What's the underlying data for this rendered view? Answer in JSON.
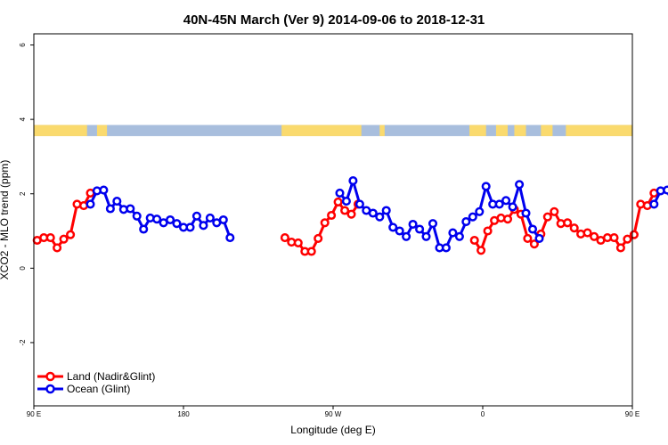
{
  "chart_data": {
    "type": "line",
    "title": "40N-45N March (Ver 9)   2014-09-06 to 2018-12-31",
    "xlabel": "Longitude (deg E)",
    "ylabel": "XCO2 - MLO trend (ppm)",
    "xlim": [
      90,
      450
    ],
    "ylim": [
      -3.7,
      6.3
    ],
    "x_ticks": [
      {
        "value": 90,
        "label": "90 E"
      },
      {
        "value": 180,
        "label": "180"
      },
      {
        "value": 270,
        "label": "90 W"
      },
      {
        "value": 360,
        "label": "0"
      },
      {
        "value": 450,
        "label": "90 E"
      },
      {
        "value": 540,
        "label": "180"
      }
    ],
    "y_ticks": [
      {
        "value": -2,
        "label": "-2"
      },
      {
        "value": 0,
        "label": "0"
      },
      {
        "value": 2,
        "label": "2"
      },
      {
        "value": 4,
        "label": "4"
      },
      {
        "value": 6,
        "label": "6"
      }
    ],
    "legend_position": "bottom-left",
    "land_ocean_band": {
      "y_range": [
        3.55,
        3.85
      ],
      "land_color": "#FADA6E",
      "ocean_color": "#A8BEDD",
      "land_segments": [
        [
          90,
          122
        ],
        [
          128,
          134
        ],
        [
          239,
          287
        ],
        [
          298,
          301
        ],
        [
          352,
          362
        ],
        [
          368,
          375
        ],
        [
          379,
          386
        ],
        [
          395,
          402
        ],
        [
          410,
          451
        ],
        [
          462,
          465
        ],
        [
          470,
          473
        ],
        [
          481,
          486
        ],
        [
          490,
          495
        ],
        [
          498,
          504
        ],
        [
          509,
          512
        ]
      ]
    },
    "series": [
      {
        "name": "Land (Nadir&Glint)",
        "color": "#FF0000",
        "points": [
          [
            92,
            0.75
          ],
          [
            96,
            0.82
          ],
          [
            100,
            0.82
          ],
          [
            104,
            0.55
          ],
          [
            108,
            0.78
          ],
          [
            112,
            0.9
          ],
          [
            116,
            1.72
          ],
          [
            120,
            1.68
          ],
          [
            124,
            2.02
          ],
          [
            241,
            0.82
          ],
          [
            245,
            0.7
          ],
          [
            249,
            0.68
          ],
          [
            253,
            0.45
          ],
          [
            257,
            0.45
          ],
          [
            261,
            0.8
          ],
          [
            265,
            1.22
          ],
          [
            269,
            1.42
          ],
          [
            273,
            1.78
          ],
          [
            277,
            1.55
          ],
          [
            281,
            1.45
          ],
          [
            285,
            1.72
          ],
          [
            355,
            0.75
          ],
          [
            359,
            0.48
          ],
          [
            363,
            1.0
          ],
          [
            367,
            1.28
          ],
          [
            371,
            1.35
          ],
          [
            375,
            1.32
          ],
          [
            379,
            1.58
          ],
          [
            383,
            1.45
          ],
          [
            387,
            0.8
          ],
          [
            391,
            0.65
          ],
          [
            395,
            0.92
          ],
          [
            399,
            1.38
          ],
          [
            403,
            1.52
          ],
          [
            407,
            1.2
          ],
          [
            411,
            1.22
          ],
          [
            415,
            1.08
          ],
          [
            419,
            0.92
          ],
          [
            423,
            0.95
          ],
          [
            427,
            0.85
          ],
          [
            431,
            0.75
          ],
          [
            435,
            0.82
          ],
          [
            439,
            0.82
          ],
          [
            443,
            0.55
          ],
          [
            447,
            0.78
          ],
          [
            451,
            0.9
          ],
          [
            455,
            1.72
          ],
          [
            459,
            1.68
          ],
          [
            463,
            2.02
          ]
        ]
      },
      {
        "name": "Ocean (Glint)",
        "color": "#0000EE",
        "points": [
          [
            124,
            1.72
          ],
          [
            128,
            2.08
          ],
          [
            132,
            2.1
          ],
          [
            136,
            1.6
          ],
          [
            140,
            1.8
          ],
          [
            144,
            1.58
          ],
          [
            148,
            1.6
          ],
          [
            152,
            1.4
          ],
          [
            156,
            1.05
          ],
          [
            160,
            1.35
          ],
          [
            164,
            1.32
          ],
          [
            168,
            1.22
          ],
          [
            172,
            1.3
          ],
          [
            176,
            1.2
          ],
          [
            180,
            1.1
          ],
          [
            184,
            1.1
          ],
          [
            188,
            1.4
          ],
          [
            192,
            1.15
          ],
          [
            196,
            1.35
          ],
          [
            200,
            1.22
          ],
          [
            204,
            1.3
          ],
          [
            208,
            0.82
          ],
          [
            274,
            2.02
          ],
          [
            278,
            1.8
          ],
          [
            282,
            2.35
          ],
          [
            286,
            1.72
          ],
          [
            290,
            1.55
          ],
          [
            294,
            1.48
          ],
          [
            298,
            1.38
          ],
          [
            302,
            1.55
          ],
          [
            306,
            1.1
          ],
          [
            310,
            1.0
          ],
          [
            314,
            0.85
          ],
          [
            318,
            1.18
          ],
          [
            322,
            1.05
          ],
          [
            326,
            0.85
          ],
          [
            330,
            1.2
          ],
          [
            334,
            0.55
          ],
          [
            338,
            0.55
          ],
          [
            342,
            0.95
          ],
          [
            346,
            0.85
          ],
          [
            350,
            1.25
          ],
          [
            354,
            1.38
          ],
          [
            358,
            1.52
          ],
          [
            362,
            2.2
          ],
          [
            366,
            1.72
          ],
          [
            370,
            1.72
          ],
          [
            374,
            1.82
          ],
          [
            378,
            1.65
          ],
          [
            382,
            2.25
          ],
          [
            386,
            1.48
          ],
          [
            390,
            1.05
          ],
          [
            394,
            0.8
          ],
          [
            463,
            1.72
          ],
          [
            467,
            2.08
          ],
          [
            471,
            2.1
          ],
          [
            475,
            1.6
          ],
          [
            479,
            1.8
          ],
          [
            483,
            1.58
          ],
          [
            487,
            1.6
          ],
          [
            491,
            1.4
          ],
          [
            495,
            1.05
          ],
          [
            499,
            1.35
          ]
        ]
      }
    ]
  }
}
